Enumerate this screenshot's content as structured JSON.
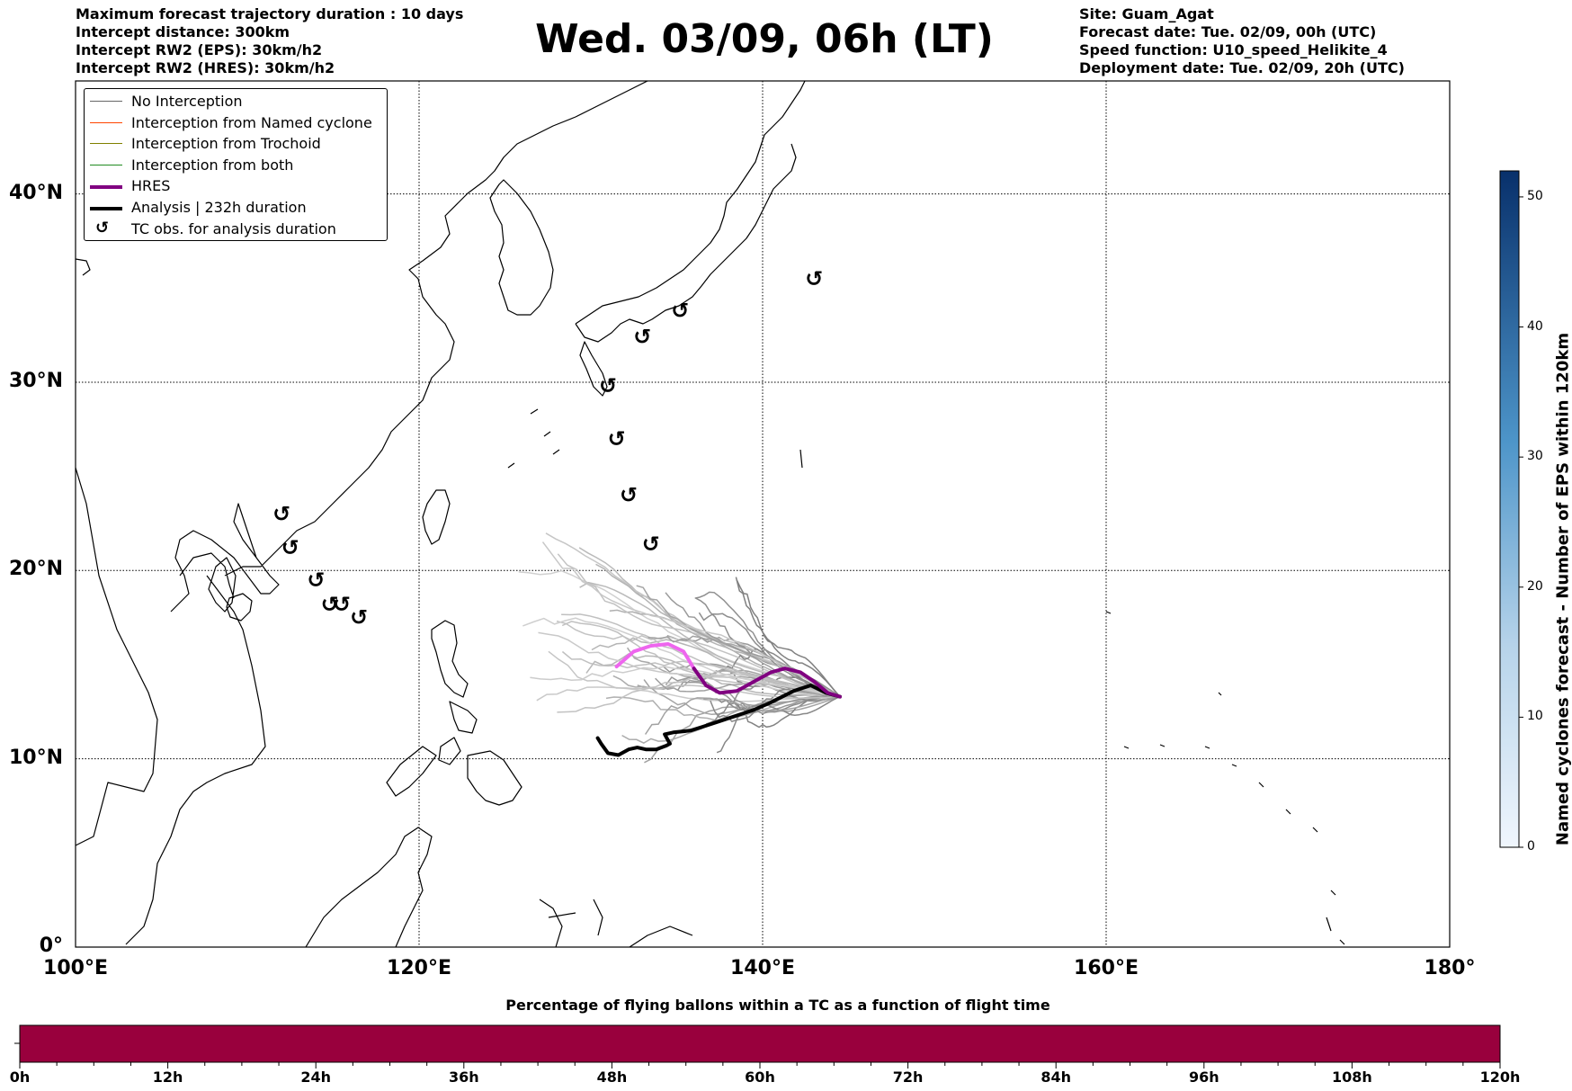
{
  "header_left": [
    "Maximum forecast trajectory duration : 10 days",
    "Intercept distance: 300km",
    "Intercept RW2 (EPS):  30km/h2",
    "Intercept RW2 (HRES): 30km/h2"
  ],
  "title": "Wed. 03/09, 06h (LT)",
  "header_right": [
    "Site: Guam_Agat",
    "Forecast date: Tue. 02/09, 00h (UTC)",
    "Speed function: U10_speed_Helikite_4",
    "Deployment date: Tue. 02/09, 20h (UTC)"
  ],
  "map": {
    "lon_range": [
      100,
      180
    ],
    "lat_range": [
      0,
      46
    ],
    "lon_ticks": [
      {
        "v": 100,
        "label": "100°E"
      },
      {
        "v": 120,
        "label": "120°E"
      },
      {
        "v": 140,
        "label": "140°E"
      },
      {
        "v": 160,
        "label": "160°E"
      },
      {
        "v": 180,
        "label": "180°"
      }
    ],
    "lat_ticks": [
      {
        "v": 0,
        "label": "0°"
      },
      {
        "v": 10,
        "label": "10°N"
      },
      {
        "v": 20,
        "label": "20°N"
      },
      {
        "v": 30,
        "label": "30°N"
      },
      {
        "v": 40,
        "label": "40°N"
      }
    ],
    "grid": "dotted",
    "colors": {
      "hres": "#800080",
      "hres_early": "#ee66ee",
      "analysis": "#000000",
      "no_interception": "#666666",
      "named": "#ff4400",
      "trochoid": "#808000",
      "both": "#228b22"
    },
    "tc_obs": [
      [
        112.0,
        23.0
      ],
      [
        112.5,
        21.2
      ],
      [
        114.0,
        19.5
      ],
      [
        114.8,
        18.2
      ],
      [
        115.5,
        18.2
      ],
      [
        116.5,
        17.5
      ],
      [
        131.0,
        29.8
      ],
      [
        131.5,
        27.0
      ],
      [
        132.2,
        24.0
      ],
      [
        133.5,
        21.4
      ],
      [
        133.0,
        32.4
      ],
      [
        135.2,
        33.8
      ],
      [
        143.0,
        35.5
      ]
    ],
    "hres_track": [
      [
        131.5,
        14.9
      ],
      [
        132.5,
        15.7
      ],
      [
        133.5,
        16.0
      ],
      [
        134.5,
        16.1
      ],
      [
        135.4,
        15.7
      ],
      [
        136.0,
        14.8
      ],
      [
        136.7,
        13.9
      ],
      [
        137.5,
        13.5
      ],
      [
        138.5,
        13.6
      ],
      [
        139.5,
        14.1
      ],
      [
        140.5,
        14.6
      ],
      [
        141.3,
        14.8
      ],
      [
        142.2,
        14.6
      ],
      [
        143.0,
        14.1
      ],
      [
        143.8,
        13.5
      ],
      [
        144.5,
        13.3
      ]
    ],
    "analysis_track": [
      [
        144.5,
        13.3
      ],
      [
        143.7,
        13.5
      ],
      [
        142.8,
        13.9
      ],
      [
        141.8,
        13.6
      ],
      [
        140.5,
        13.0
      ],
      [
        139.5,
        12.6
      ],
      [
        138.5,
        12.3
      ],
      [
        137.5,
        12.0
      ],
      [
        136.5,
        11.7
      ],
      [
        135.8,
        11.5
      ],
      [
        134.8,
        11.4
      ],
      [
        134.3,
        11.3
      ],
      [
        134.6,
        10.8
      ],
      [
        134.4,
        10.7
      ],
      [
        133.8,
        10.5
      ],
      [
        133.2,
        10.5
      ],
      [
        132.7,
        10.6
      ],
      [
        132.2,
        10.5
      ],
      [
        131.6,
        10.2
      ],
      [
        131.0,
        10.3
      ],
      [
        130.6,
        10.8
      ],
      [
        130.4,
        11.1
      ]
    ]
  },
  "legend": [
    {
      "label": "No Interception",
      "style": "thin",
      "color": "#666666"
    },
    {
      "label": "Interception from Named cyclone",
      "style": "thin",
      "color": "#ff4400"
    },
    {
      "label": "Interception from Trochoid",
      "style": "thin",
      "color": "#808000"
    },
    {
      "label": "Interception from both",
      "style": "thin",
      "color": "#228b22"
    },
    {
      "label": "HRES",
      "style": "thick",
      "color": "#800080"
    },
    {
      "label": "Analysis | 232h duration",
      "style": "thick",
      "color": "#000000"
    },
    {
      "label": "TC obs. for analysis duration",
      "style": "symbol",
      "color": "#000000",
      "symbol": "↺"
    }
  ],
  "colorbar": {
    "label": "Named cyclones forecast - Number of EPS within 120km",
    "range": [
      0,
      52
    ],
    "ticks": [
      0,
      10,
      20,
      30,
      40,
      50
    ]
  },
  "bottom_bar": {
    "title": "Percentage of flying ballons within a TC as a function of flight time",
    "color": "#99003d",
    "range_h": [
      0,
      120
    ],
    "major_ticks": [
      "0h",
      "12h",
      "24h",
      "36h",
      "48h",
      "60h",
      "72h",
      "84h",
      "96h",
      "108h",
      "120h"
    ]
  }
}
